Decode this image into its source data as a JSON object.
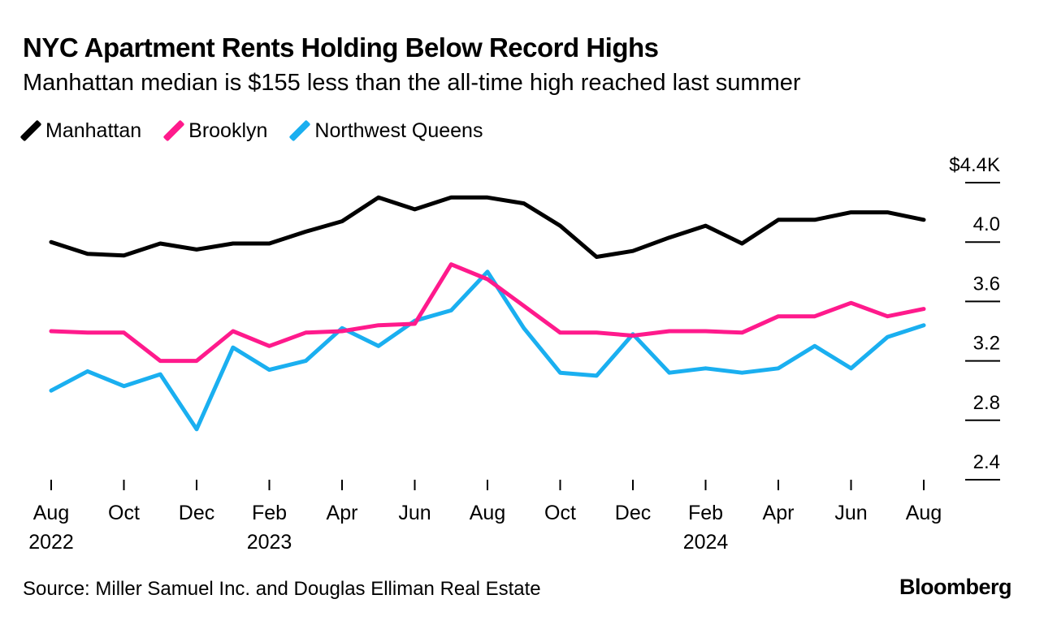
{
  "title": "NYC Apartment Rents Holding Below Record Highs",
  "subtitle": "Manhattan median is $155 less than the all-time high reached last summer",
  "source": "Source: Miller Samuel Inc. and Douglas Elliman Real Estate",
  "brand": "Bloomberg",
  "legend": [
    {
      "name": "Manhattan",
      "color": "#000000"
    },
    {
      "name": "Brooklyn",
      "color": "#ff1a8c"
    },
    {
      "name": "Northwest Queens",
      "color": "#1aaff0"
    }
  ],
  "chart_data": {
    "type": "line",
    "title": "NYC Apartment Rents Holding Below Record Highs",
    "x": [
      "Aug 2022",
      "Sep 2022",
      "Oct 2022",
      "Nov 2022",
      "Dec 2022",
      "Jan 2023",
      "Feb 2023",
      "Mar 2023",
      "Apr 2023",
      "May 2023",
      "Jun 2023",
      "Jul 2023",
      "Aug 2023",
      "Sep 2023",
      "Oct 2023",
      "Nov 2023",
      "Dec 2023",
      "Jan 2024",
      "Feb 2024",
      "Mar 2024",
      "Apr 2024",
      "May 2024",
      "Jun 2024",
      "Jul 2024",
      "Aug 2024"
    ],
    "series": [
      {
        "name": "Manhattan",
        "color": "#000000",
        "values": [
          4.0,
          3.92,
          3.91,
          3.99,
          3.95,
          3.99,
          3.99,
          4.07,
          4.14,
          4.3,
          4.22,
          4.3,
          4.3,
          4.26,
          4.11,
          3.9,
          3.94,
          4.03,
          4.11,
          3.99,
          4.15,
          4.15,
          4.2,
          4.2,
          4.15
        ]
      },
      {
        "name": "Brooklyn",
        "color": "#ff1a8c",
        "values": [
          3.4,
          3.39,
          3.39,
          3.2,
          3.2,
          3.4,
          3.3,
          3.39,
          3.4,
          3.44,
          3.45,
          3.85,
          3.75,
          3.57,
          3.39,
          3.39,
          3.37,
          3.4,
          3.4,
          3.39,
          3.5,
          3.5,
          3.59,
          3.5,
          3.55
        ]
      },
      {
        "name": "Northwest Queens",
        "color": "#1aaff0",
        "values": [
          3.0,
          3.13,
          3.03,
          3.11,
          2.74,
          3.29,
          3.14,
          3.2,
          3.42,
          3.3,
          3.47,
          3.54,
          3.8,
          3.42,
          3.12,
          3.1,
          3.38,
          3.12,
          3.15,
          3.12,
          3.15,
          3.3,
          3.15,
          3.36,
          3.44
        ]
      }
    ],
    "y_ticks": [
      {
        "value": 4.4,
        "label": "$4.4K"
      },
      {
        "value": 4.0,
        "label": "4.0"
      },
      {
        "value": 3.6,
        "label": "3.6"
      },
      {
        "value": 3.2,
        "label": "3.2"
      },
      {
        "value": 2.8,
        "label": "2.8"
      },
      {
        "value": 2.4,
        "label": "2.4"
      }
    ],
    "x_ticks": [
      {
        "index": 0,
        "month": "Aug",
        "year": "2022"
      },
      {
        "index": 2,
        "month": "Oct",
        "year": ""
      },
      {
        "index": 4,
        "month": "Dec",
        "year": ""
      },
      {
        "index": 6,
        "month": "Feb",
        "year": "2023"
      },
      {
        "index": 8,
        "month": "Apr",
        "year": ""
      },
      {
        "index": 10,
        "month": "Jun",
        "year": ""
      },
      {
        "index": 12,
        "month": "Aug",
        "year": ""
      },
      {
        "index": 14,
        "month": "Oct",
        "year": ""
      },
      {
        "index": 16,
        "month": "Dec",
        "year": ""
      },
      {
        "index": 18,
        "month": "Feb",
        "year": "2024"
      },
      {
        "index": 20,
        "month": "Apr",
        "year": ""
      },
      {
        "index": 22,
        "month": "Jun",
        "year": ""
      },
      {
        "index": 24,
        "month": "Aug",
        "year": ""
      }
    ],
    "ylim": [
      2.4,
      4.4
    ],
    "xlabel": "",
    "ylabel": "",
    "grid": false
  }
}
